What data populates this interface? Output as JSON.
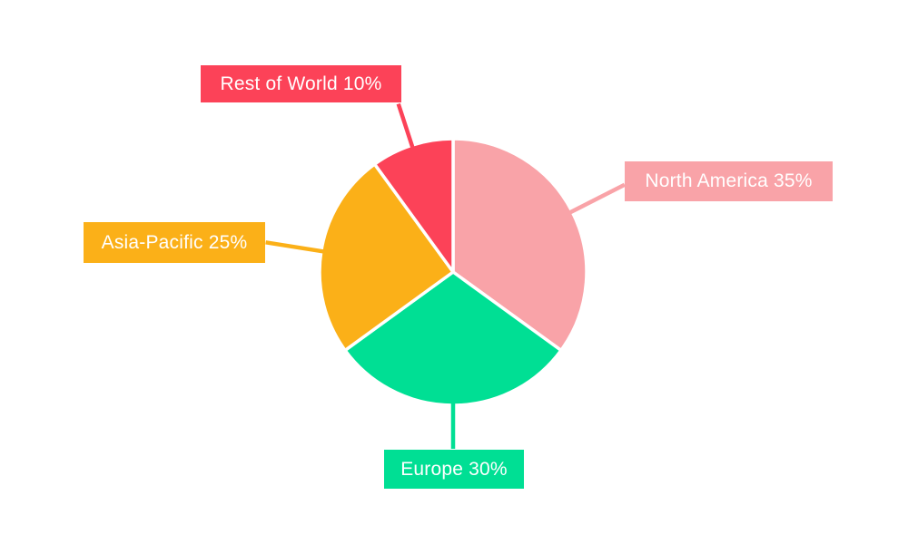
{
  "chart_data": {
    "type": "pie",
    "title": "",
    "start_angle_deg": 0,
    "direction": "clockwise",
    "labels_style": "callout boxes with colored leader lines",
    "background_color": "#FFFFFF",
    "label_text_color": "#FFFFFF",
    "categories": [
      "North America",
      "Europe",
      "Asia-Pacific",
      "Rest of World"
    ],
    "values": [
      35,
      30,
      25,
      10
    ],
    "slices": [
      {
        "label": "North America",
        "value": 35,
        "unit": "%",
        "display": "North America 35%",
        "color": "#F9A3A8"
      },
      {
        "label": "Europe",
        "value": 30,
        "unit": "%",
        "display": "Europe 30%",
        "color": "#00DF94"
      },
      {
        "label": "Asia-Pacific",
        "value": 25,
        "unit": "%",
        "display": "Asia-Pacific 25%",
        "color": "#FBB018"
      },
      {
        "label": "Rest of World",
        "value": 10,
        "unit": "%",
        "display": "Rest of World 10%",
        "color": "#FC4258"
      }
    ]
  }
}
